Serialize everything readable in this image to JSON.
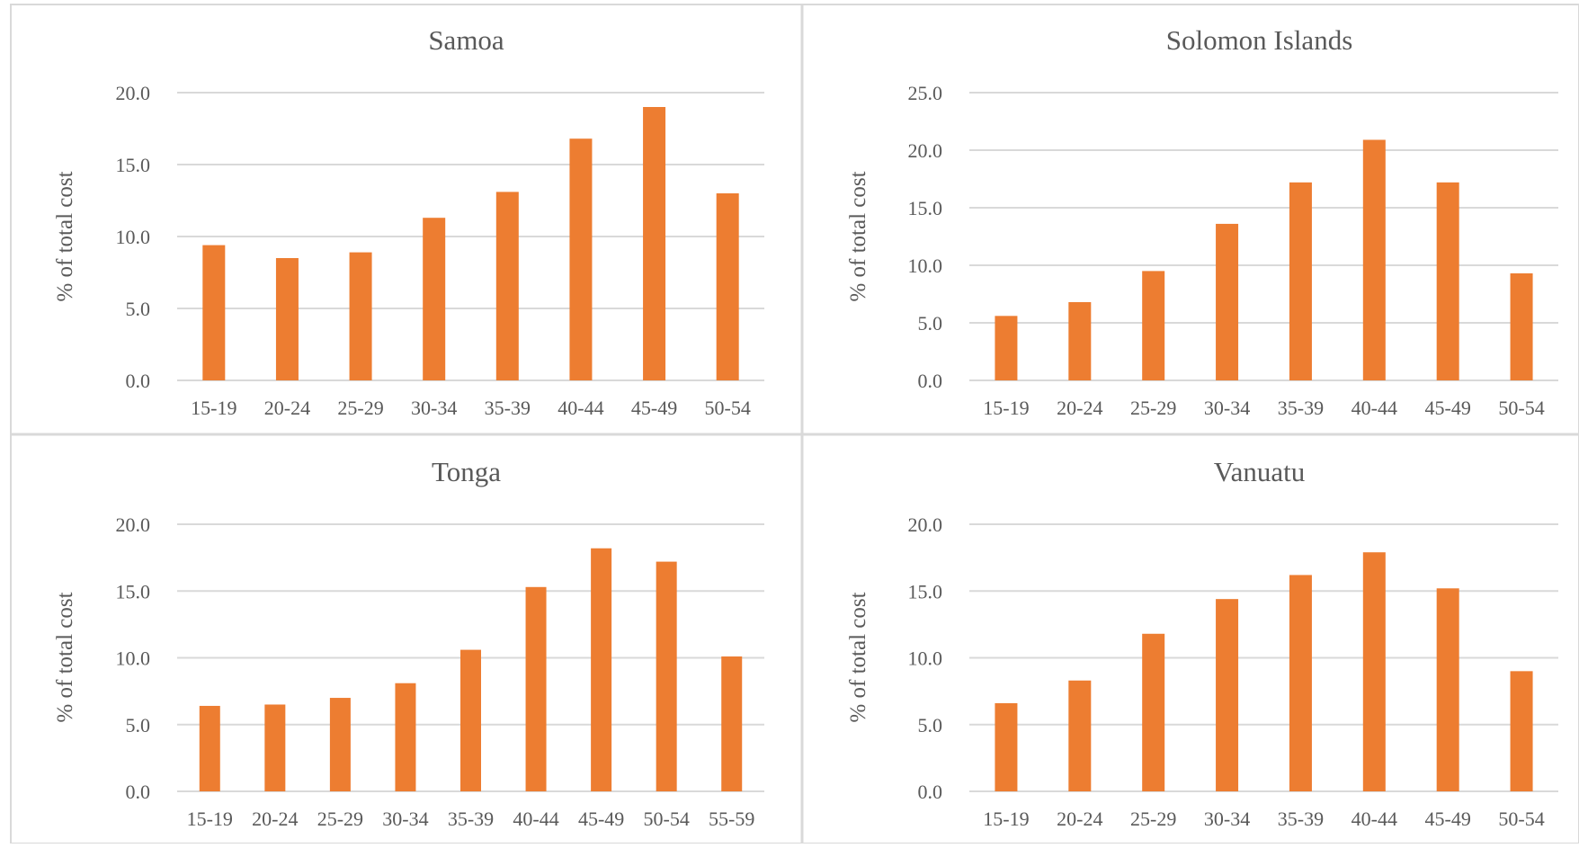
{
  "chart_data": [
    {
      "type": "bar",
      "title": "Samoa",
      "ylabel": "% of total cost",
      "xlabel": "",
      "ylim": [
        0,
        20
      ],
      "yticks": [
        "0.0",
        "5.0",
        "10.0",
        "15.0",
        "20.0"
      ],
      "grid": true,
      "categories": [
        "15-19",
        "20-24",
        "25-29",
        "30-34",
        "35-39",
        "40-44",
        "45-49",
        "50-54"
      ],
      "values": [
        9.4,
        8.5,
        8.9,
        11.3,
        13.1,
        16.8,
        19.0,
        13.0
      ]
    },
    {
      "type": "bar",
      "title": "Solomon Islands",
      "ylabel": "% of total cost",
      "xlabel": "",
      "ylim": [
        0,
        25
      ],
      "yticks": [
        "0.0",
        "5.0",
        "10.0",
        "15.0",
        "20.0",
        "25.0"
      ],
      "grid": true,
      "categories": [
        "15-19",
        "20-24",
        "25-29",
        "30-34",
        "35-39",
        "40-44",
        "45-49",
        "50-54"
      ],
      "values": [
        5.6,
        6.8,
        9.5,
        13.6,
        17.2,
        20.9,
        17.2,
        9.3
      ]
    },
    {
      "type": "bar",
      "title": "Tonga",
      "ylabel": "% of total cost",
      "xlabel": "",
      "ylim": [
        0,
        20
      ],
      "yticks": [
        "0.0",
        "5.0",
        "10.0",
        "15.0",
        "20.0"
      ],
      "grid": true,
      "categories": [
        "15-19",
        "20-24",
        "25-29",
        "30-34",
        "35-39",
        "40-44",
        "45-49",
        "50-54",
        "55-59"
      ],
      "values": [
        6.4,
        6.5,
        7.0,
        8.1,
        10.6,
        15.3,
        18.2,
        17.2,
        10.1
      ]
    },
    {
      "type": "bar",
      "title": "Vanuatu",
      "ylabel": "% of total cost",
      "xlabel": "",
      "ylim": [
        0,
        20
      ],
      "yticks": [
        "0.0",
        "5.0",
        "10.0",
        "15.0",
        "20.0"
      ],
      "grid": true,
      "categories": [
        "15-19",
        "20-24",
        "25-29",
        "30-34",
        "35-39",
        "40-44",
        "45-49",
        "50-54"
      ],
      "values": [
        6.6,
        8.3,
        11.8,
        14.4,
        16.2,
        17.9,
        15.2,
        9.0
      ]
    }
  ],
  "colors": {
    "bar": "#ED7D31",
    "grid": "#D9D9D9",
    "text": "#595959",
    "panel_border": "#D9D9D9"
  }
}
